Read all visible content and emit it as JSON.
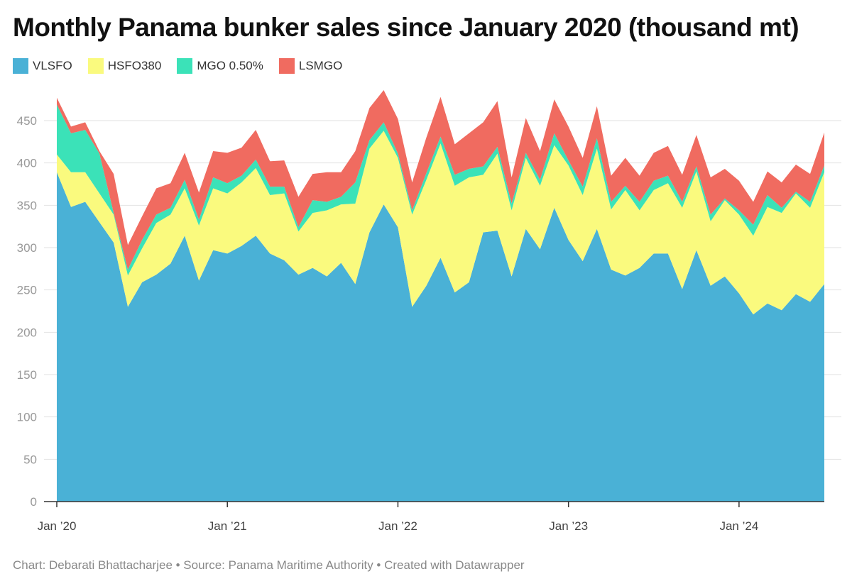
{
  "chart_data": {
    "type": "area",
    "stacked": true,
    "title": "Monthly Panama bunker sales since January 2020 (thousand mt)",
    "xlabel": "",
    "ylabel": "",
    "ylim": [
      0,
      475
    ],
    "y_ticks": [
      "0",
      "50",
      "100",
      "150",
      "200",
      "250",
      "300",
      "350",
      "400",
      "450"
    ],
    "x_tick_labels": [
      "Jan ’20",
      "Jan ’21",
      "Jan ’22",
      "Jan ’23",
      "Jan ’24"
    ],
    "grid": true,
    "legend": "top-left",
    "x": [
      "2020-01",
      "2020-02",
      "2020-03",
      "2020-04",
      "2020-05",
      "2020-06",
      "2020-07",
      "2020-08",
      "2020-09",
      "2020-10",
      "2020-11",
      "2020-12",
      "2021-01",
      "2021-02",
      "2021-03",
      "2021-04",
      "2021-05",
      "2021-06",
      "2021-07",
      "2021-08",
      "2021-09",
      "2021-10",
      "2021-11",
      "2021-12",
      "2022-01",
      "2022-02",
      "2022-03",
      "2022-04",
      "2022-05",
      "2022-06",
      "2022-07",
      "2022-08",
      "2022-09",
      "2022-10",
      "2022-11",
      "2022-12",
      "2023-01",
      "2023-02",
      "2023-03",
      "2023-04",
      "2023-05",
      "2023-06",
      "2023-07",
      "2023-08",
      "2023-09",
      "2023-10",
      "2023-11",
      "2023-12",
      "2024-01",
      "2024-02",
      "2024-03",
      "2024-04",
      "2024-05",
      "2024-06",
      "2024-07"
    ],
    "series": [
      {
        "name": "VLSFO",
        "color": "#4ab1d6",
        "values": [
          389,
          348,
          354,
          330,
          306,
          230,
          259,
          268,
          281,
          314,
          261,
          297,
          293,
          302,
          314,
          293,
          285,
          268,
          276,
          266,
          282,
          257,
          318,
          351,
          324,
          230,
          255,
          288,
          247,
          259,
          318,
          320,
          266,
          322,
          298,
          347,
          309,
          284,
          322,
          274,
          267,
          276,
          293,
          293,
          251,
          297,
          255,
          266,
          246,
          221,
          234,
          226,
          245,
          236,
          257
        ]
      },
      {
        "name": "HSFO380",
        "color": "#fafa7e",
        "values": [
          21,
          41,
          35,
          34,
          33,
          37,
          40,
          61,
          58,
          56,
          65,
          73,
          71,
          75,
          80,
          69,
          79,
          51,
          65,
          78,
          69,
          95,
          99,
          87,
          82,
          109,
          125,
          135,
          126,
          124,
          68,
          91,
          78,
          84,
          75,
          74,
          88,
          78,
          95,
          71,
          101,
          68,
          75,
          83,
          96,
          93,
          76,
          90,
          93,
          93,
          114,
          115,
          119,
          111,
          132
        ]
      },
      {
        "name": "MGO 0.50%",
        "color": "#3be2b8",
        "values": [
          59,
          46,
          50,
          47,
          2,
          7,
          10,
          10,
          8,
          10,
          7,
          13,
          12,
          8,
          10,
          10,
          8,
          5,
          15,
          10,
          9,
          25,
          10,
          10,
          5,
          5,
          8,
          8,
          13,
          10,
          10,
          8,
          8,
          6,
          7,
          14,
          6,
          10,
          12,
          9,
          5,
          10,
          11,
          9,
          7,
          6,
          8,
          2,
          5,
          13,
          14,
          6,
          2,
          7,
          8
        ]
      },
      {
        "name": "LSMGO",
        "color": "#f06b60",
        "values": [
          8,
          8,
          9,
          3,
          46,
          29,
          28,
          31,
          29,
          32,
          32,
          31,
          36,
          33,
          35,
          30,
          31,
          36,
          31,
          35,
          29,
          37,
          38,
          38,
          41,
          33,
          42,
          47,
          36,
          42,
          52,
          54,
          31,
          41,
          34,
          40,
          40,
          34,
          38,
          31,
          33,
          31,
          33,
          35,
          32,
          37,
          44,
          35,
          35,
          27,
          28,
          30,
          32,
          33,
          39
        ]
      }
    ]
  },
  "footer": "Chart: Debarati Bhattacharjee • Source: Panama Maritime Authority • Created with Datawrapper"
}
